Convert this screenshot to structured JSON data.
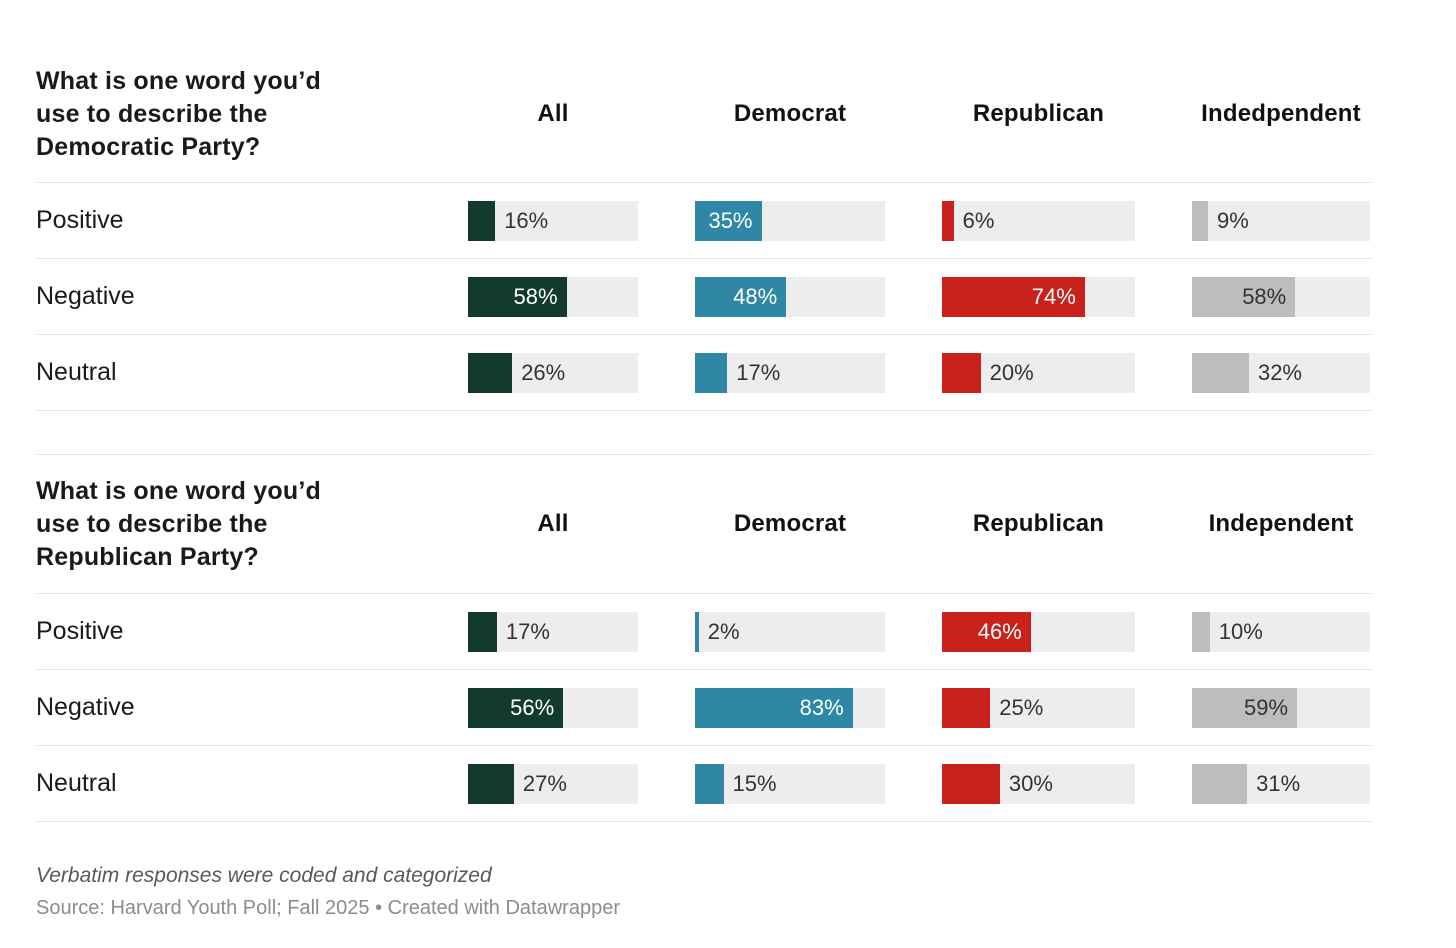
{
  "colors": {
    "all": "#123a2f",
    "democrat": "#2e87a5",
    "republican": "#c9211b",
    "independent": "#bdbdbd",
    "bar_track": "#ededed"
  },
  "chart_data": [
    {
      "type": "bar",
      "orientation": "horizontal",
      "title": "What is one word you’d use to describe the Democratic Party?",
      "title_lines": [
        "What is one word you’d",
        "use to describe the",
        "Democratic Party?"
      ],
      "categories": [
        "Positive",
        "Negative",
        "Neutral"
      ],
      "series": [
        {
          "name": "All",
          "values": [
            16,
            58,
            26
          ],
          "color": "#123a2f",
          "label_dark": false
        },
        {
          "name": "Democrat",
          "values": [
            35,
            48,
            17
          ],
          "color": "#2e87a5",
          "label_dark": false
        },
        {
          "name": "Republican",
          "values": [
            6,
            74,
            20
          ],
          "color": "#c9211b",
          "label_dark": false
        },
        {
          "name": "Indedpendent",
          "values": [
            9,
            58,
            32
          ],
          "color": "#bdbdbd",
          "label_dark": true
        }
      ],
      "unit": "%",
      "xlim": [
        0,
        100
      ],
      "grid": false,
      "legend": "none"
    },
    {
      "type": "bar",
      "orientation": "horizontal",
      "title": "What is one word you’d use to describe the Republican Party?",
      "title_lines": [
        "What is one word you’d",
        "use to describe the",
        "Republican Party?"
      ],
      "categories": [
        "Positive",
        "Negative",
        "Neutral"
      ],
      "series": [
        {
          "name": "All",
          "values": [
            17,
            56,
            27
          ],
          "color": "#123a2f",
          "label_dark": false
        },
        {
          "name": "Democrat",
          "values": [
            2,
            83,
            15
          ],
          "color": "#2e87a5",
          "label_dark": false
        },
        {
          "name": "Republican",
          "values": [
            46,
            25,
            30
          ],
          "color": "#c9211b",
          "label_dark": false
        },
        {
          "name": "Independent",
          "values": [
            10,
            59,
            31
          ],
          "color": "#bdbdbd",
          "label_dark": true
        }
      ],
      "unit": "%",
      "xlim": [
        0,
        100
      ],
      "grid": false,
      "legend": "none"
    }
  ],
  "footer": {
    "footnote": "Verbatim responses were coded and categorized",
    "source": "Source: Harvard Youth Poll; Fall 2025 • Created with Datawrapper"
  },
  "label_inside_threshold": 35
}
